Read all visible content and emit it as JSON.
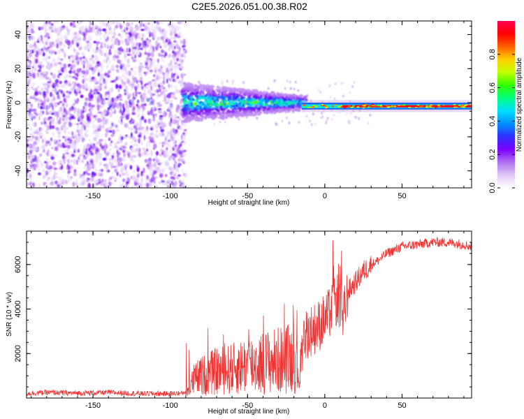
{
  "chart_data": [
    {
      "type": "heatmap",
      "title": "C2E5.2026.051.00.38.R02",
      "xlabel": "Height of straight line (km)",
      "ylabel": "Frequency (Hz)",
      "xlim": [
        -193,
        95
      ],
      "ylim": [
        -50,
        48
      ],
      "xticks": [
        -150,
        -100,
        -50,
        0,
        50
      ],
      "yticks": [
        -40,
        -20,
        0,
        20,
        40
      ],
      "colorbar": {
        "label": "Normalized spectral amplitude",
        "range": [
          0,
          1
        ],
        "ticks": [
          "0.0",
          "0.2",
          "0.4",
          "0.6",
          "0.8"
        ],
        "tick_values": [
          0,
          0.2,
          0.4,
          0.6,
          0.8
        ],
        "colormap": [
          "#ffffff",
          "#e0c8f8",
          "#b070f0",
          "#7a00ff",
          "#3030ff",
          "#0090ff",
          "#00e0ff",
          "#00ff80",
          "#30ff00",
          "#c0ff00",
          "#ffd000",
          "#ff6000",
          "#ff0000",
          "#ff0050"
        ]
      },
      "regions": [
        {
          "x": [
            -193,
            -90
          ],
          "freq_center": 0,
          "freq_halfwidth": 48,
          "peak_amplitude": 0.25,
          "description": "broadband noise"
        },
        {
          "x": [
            -90,
            -15
          ],
          "freq_center": 0,
          "freq_halfwidth": 8,
          "peak_amplitude": 0.5
        },
        {
          "x": [
            -15,
            95
          ],
          "freq_center": -2,
          "freq_halfwidth": 2,
          "peak_amplitude": 1.0
        }
      ]
    },
    {
      "type": "line",
      "xlabel": "Height of straight line (km)",
      "ylabel": "SNR (10 * v/v)",
      "xlim": [
        -193,
        95
      ],
      "ylim": [
        0,
        7500
      ],
      "xticks": [
        -150,
        -100,
        -50,
        0,
        50
      ],
      "yticks": [
        2000,
        4000,
        6000
      ],
      "color": "#ee3333",
      "series": [
        {
          "x": [
            -193,
            -180,
            -160,
            -140,
            -120,
            -100,
            -92,
            -88,
            -85,
            -80,
            -70,
            -60,
            -50,
            -40,
            -30,
            -20,
            -16,
            -14,
            -10,
            -5,
            0,
            5,
            8,
            10,
            12,
            15,
            20,
            25,
            30,
            35,
            40,
            50,
            60,
            70,
            80,
            90,
            95
          ],
          "values": [
            200,
            250,
            220,
            250,
            200,
            200,
            220,
            400,
            800,
            1000,
            1200,
            1300,
            1500,
            1600,
            1700,
            1800,
            1000,
            2800,
            3000,
            3200,
            3500,
            4000,
            4500,
            4200,
            3600,
            4800,
            5200,
            5700,
            6000,
            6200,
            6500,
            6800,
            6900,
            7000,
            7000,
            6900,
            6800
          ]
        }
      ]
    }
  ]
}
